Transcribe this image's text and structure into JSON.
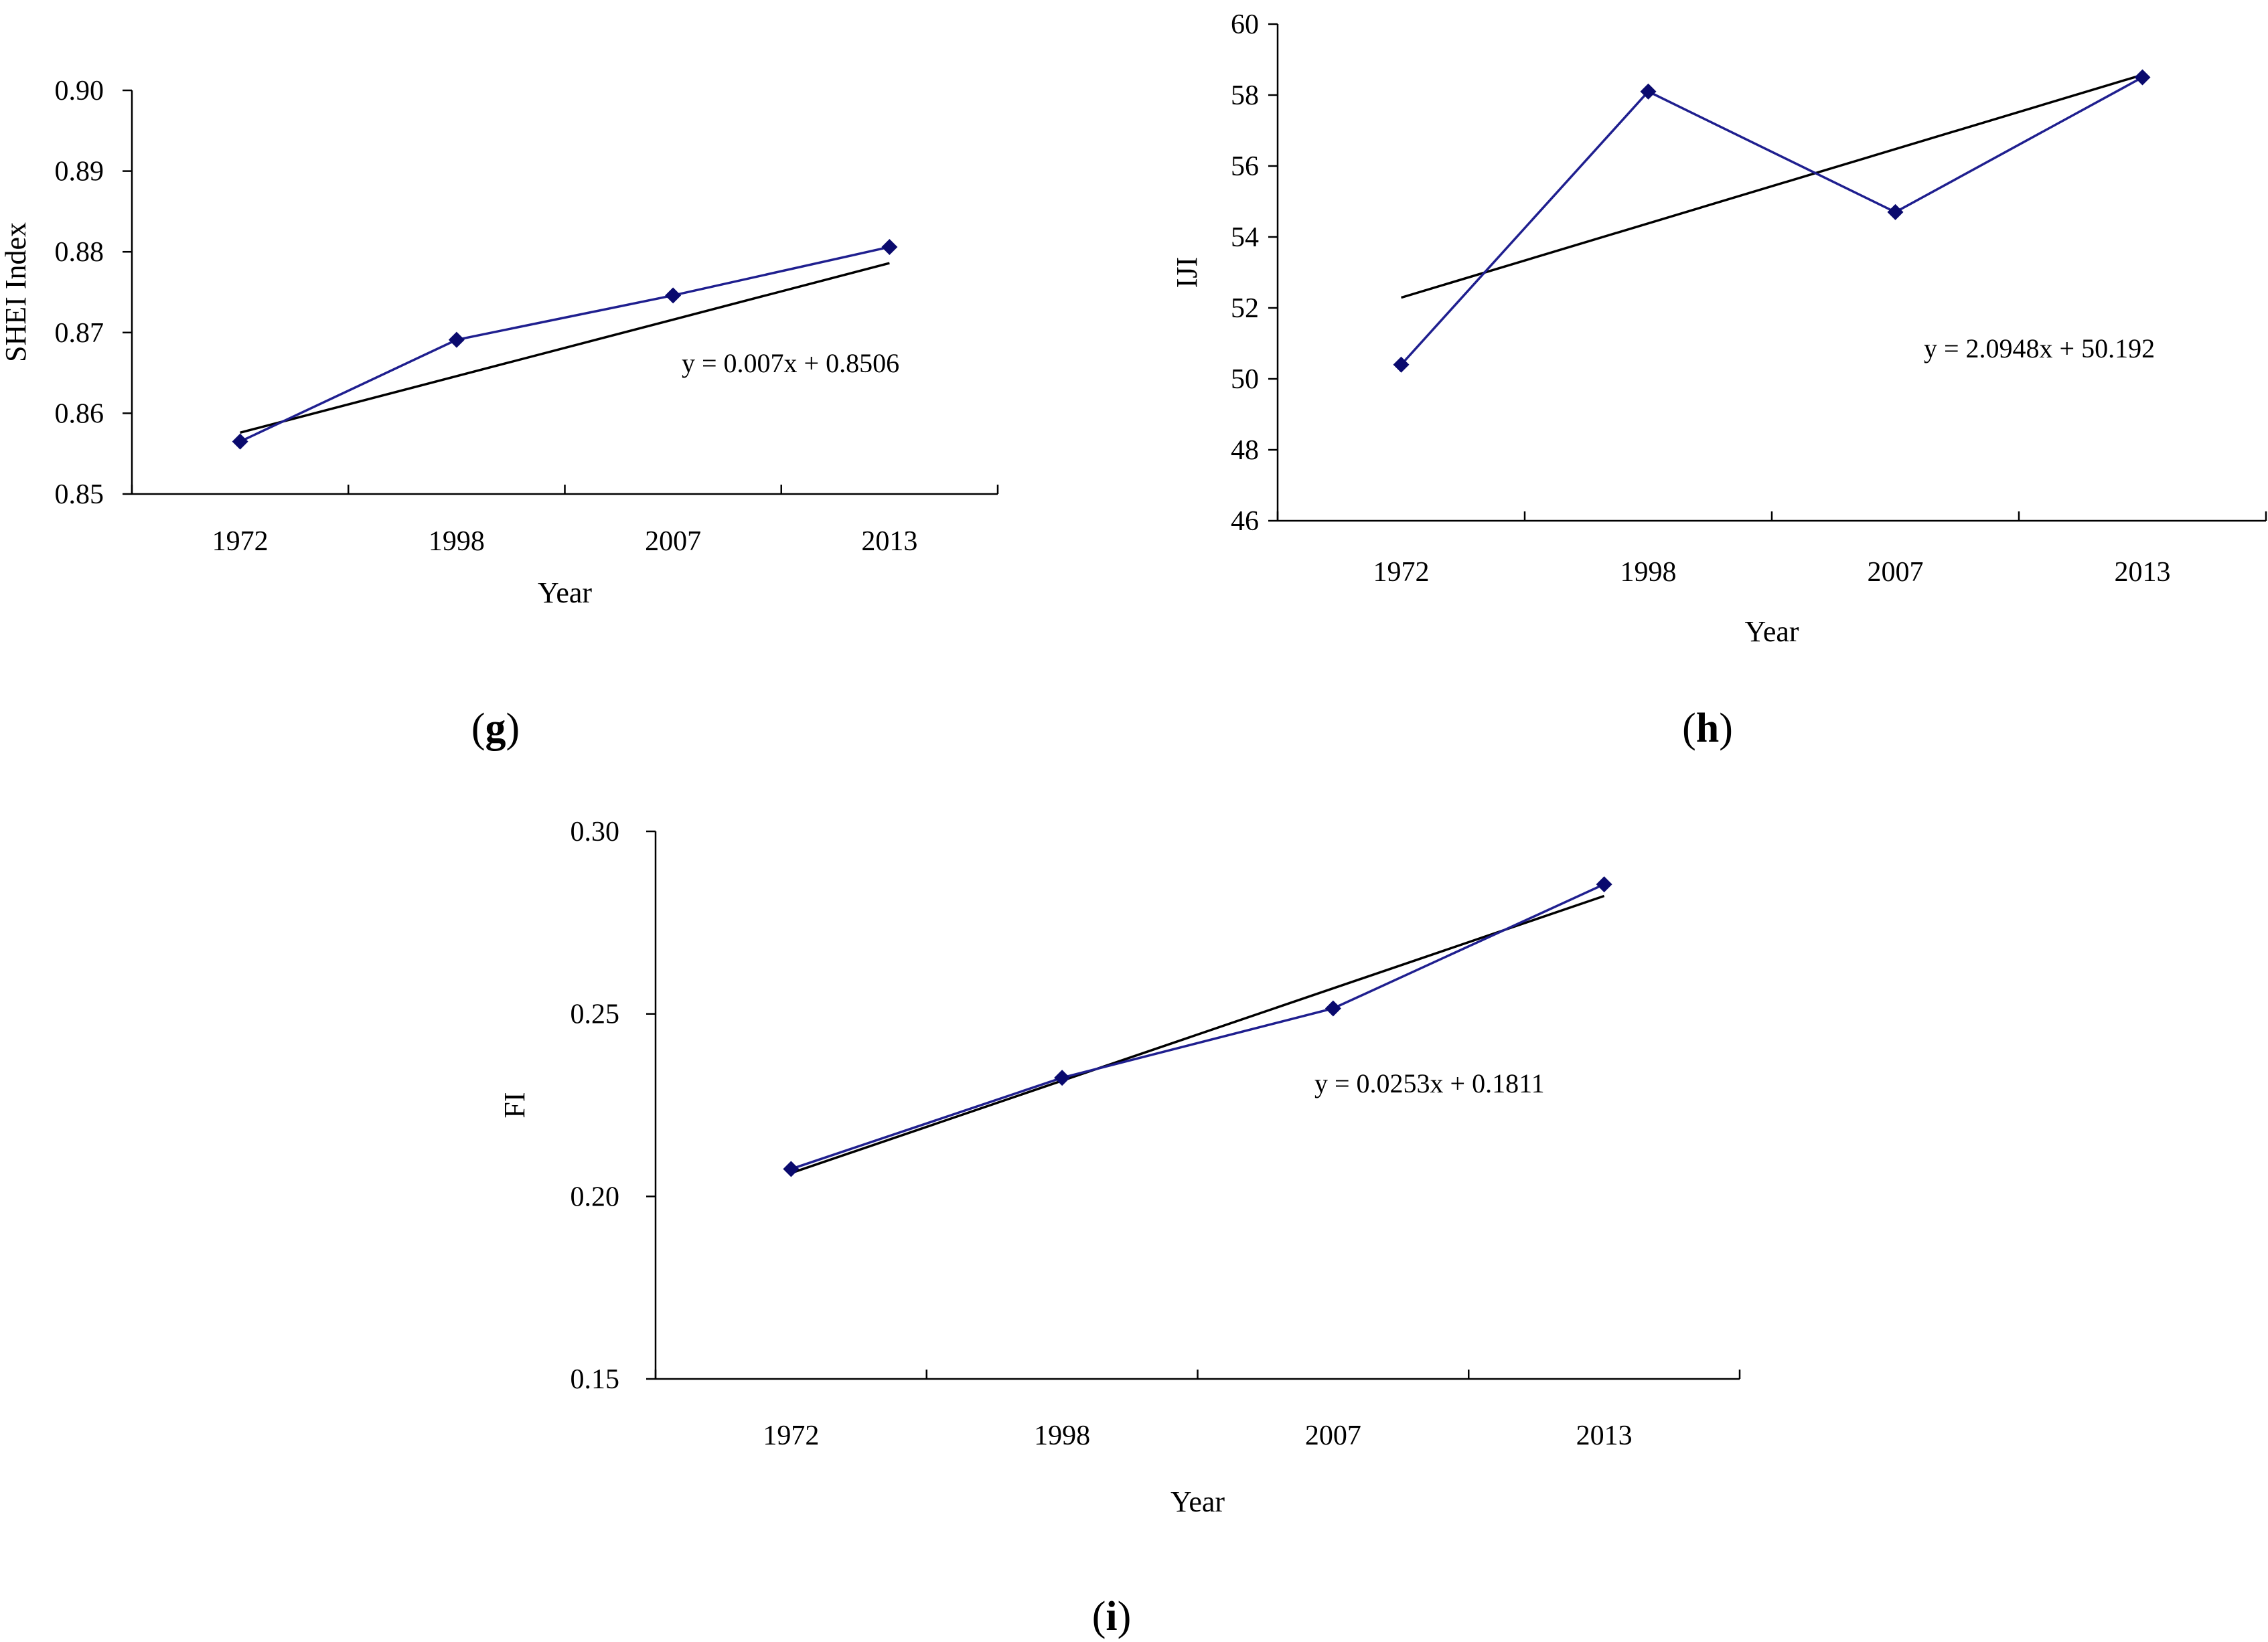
{
  "chart_data": [
    {
      "type": "line",
      "panel_label": "g",
      "categories": [
        "1972",
        "1998",
        "2007",
        "2013"
      ],
      "series": [
        {
          "name": "SHEI Index",
          "values": [
            0.8565,
            0.8691,
            0.8746,
            0.8806
          ]
        },
        {
          "name": "Linear trend",
          "values": [
            0.8576,
            0.8646,
            0.8716,
            0.8786
          ]
        }
      ],
      "ylabel": "SHEI Index",
      "xlabel": "Year",
      "ylim": [
        0.85,
        0.9
      ],
      "yticks": [
        "0.85",
        "0.86",
        "0.87",
        "0.88",
        "0.89",
        "0.90"
      ],
      "yticks_values": [
        0.85,
        0.86,
        0.87,
        0.88,
        0.89,
        0.9
      ],
      "annotation": "y = 0.007x + 0.8506",
      "colors": {
        "series": "#1f1f8f",
        "trend": "#000000",
        "marker": "#0a0a6e"
      }
    },
    {
      "type": "line",
      "panel_label": "h",
      "categories": [
        "1972",
        "1998",
        "2007",
        "2013"
      ],
      "series": [
        {
          "name": "IJI",
          "values": [
            50.4,
            58.1,
            54.7,
            58.5
          ]
        },
        {
          "name": "Linear trend",
          "values": [
            52.29,
            54.38,
            56.48,
            58.57
          ]
        }
      ],
      "ylabel": "IJI",
      "xlabel": "Year",
      "ylim": [
        46,
        60
      ],
      "yticks": [
        "46",
        "48",
        "50",
        "52",
        "54",
        "56",
        "58",
        "60"
      ],
      "yticks_values": [
        46,
        48,
        50,
        52,
        54,
        56,
        58,
        60
      ],
      "annotation": "y = 2.0948x + 50.192",
      "colors": {
        "series": "#1f1f8f",
        "trend": "#000000",
        "marker": "#0a0a6e"
      }
    },
    {
      "type": "line",
      "panel_label": "i",
      "categories": [
        "1972",
        "1998",
        "2007",
        "2013"
      ],
      "series": [
        {
          "name": "FI",
          "values": [
            0.2075,
            0.2325,
            0.2515,
            0.2855
          ]
        },
        {
          "name": "Linear trend",
          "values": [
            0.2064,
            0.2317,
            0.257,
            0.2823
          ]
        }
      ],
      "ylabel": "FI",
      "xlabel": "Year",
      "ylim": [
        0.15,
        0.3
      ],
      "yticks": [
        "0.15",
        "0.20",
        "0.25",
        "0.30"
      ],
      "yticks_values": [
        0.15,
        0.2,
        0.25,
        0.3
      ],
      "annotation": "y = 0.0253x + 0.1811",
      "colors": {
        "series": "#1f1f8f",
        "trend": "#000000",
        "marker": "#0a0a6e"
      }
    }
  ]
}
